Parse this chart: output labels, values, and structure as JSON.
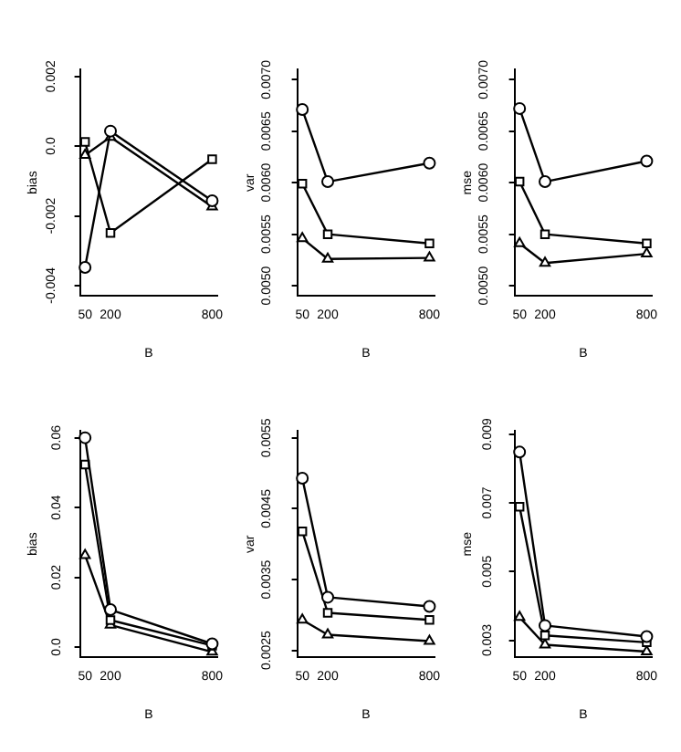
{
  "chart_data": [
    {
      "type": "line",
      "xlabel": "B",
      "ylabel": "bias",
      "x": [
        50,
        200,
        800
      ],
      "xlim": [
        20,
        830
      ],
      "xticks": [
        50,
        200,
        800
      ],
      "ylim": [
        -0.0043,
        0.0022
      ],
      "yticks": [
        {
          "value": -0.004,
          "label": "-0.004"
        },
        {
          "value": -0.002,
          "label": "-0.002"
        },
        {
          "value": 0,
          "label": "0.0"
        },
        {
          "value": 0.002,
          "label": "0.002"
        }
      ],
      "grid": false,
      "legend": false,
      "series": [
        {
          "color": "#000000",
          "marker": "circle",
          "values": [
            -0.00348,
            0.00043,
            -0.00157
          ]
        },
        {
          "color": "#000000",
          "marker": "square",
          "values": [
            0.00012,
            -0.00249,
            -0.00038
          ]
        },
        {
          "color": "#000000",
          "marker": "triangle",
          "values": [
            -0.00026,
            0.00026,
            -0.00174
          ]
        }
      ]
    },
    {
      "type": "line",
      "xlabel": "B",
      "ylabel": "var",
      "x": [
        50,
        200,
        800
      ],
      "xlim": [
        20,
        830
      ],
      "xticks": [
        50,
        200,
        800
      ],
      "ylim": [
        0.0049,
        0.0071
      ],
      "yticks": [
        {
          "value": 0.005,
          "label": "0.0050"
        },
        {
          "value": 0.0055,
          "label": "0.0055"
        },
        {
          "value": 0.006,
          "label": "0.0060"
        },
        {
          "value": 0.0065,
          "label": "0.0065"
        },
        {
          "value": 0.007,
          "label": "0.0070"
        }
      ],
      "grid": false,
      "legend": false,
      "series": [
        {
          "color": "#000000",
          "marker": "circle",
          "values": [
            0.00671,
            0.00601,
            0.00619
          ]
        },
        {
          "color": "#000000",
          "marker": "square",
          "values": [
            0.00599,
            0.0055,
            0.00541
          ]
        },
        {
          "color": "#000000",
          "marker": "triangle",
          "values": [
            0.00546,
            0.00526,
            0.00527
          ]
        }
      ]
    },
    {
      "type": "line",
      "xlabel": "B",
      "ylabel": "mse",
      "x": [
        50,
        200,
        800
      ],
      "xlim": [
        20,
        830
      ],
      "xticks": [
        50,
        200,
        800
      ],
      "ylim": [
        0.0049,
        0.0071
      ],
      "yticks": [
        {
          "value": 0.005,
          "label": "0.0050"
        },
        {
          "value": 0.0055,
          "label": "0.0055"
        },
        {
          "value": 0.006,
          "label": "0.0060"
        },
        {
          "value": 0.0065,
          "label": "0.0065"
        },
        {
          "value": 0.007,
          "label": "0.0070"
        }
      ],
      "grid": false,
      "legend": false,
      "series": [
        {
          "color": "#000000",
          "marker": "circle",
          "values": [
            0.00672,
            0.00601,
            0.00621
          ]
        },
        {
          "color": "#000000",
          "marker": "square",
          "values": [
            0.00601,
            0.0055,
            0.00541
          ]
        },
        {
          "color": "#000000",
          "marker": "triangle",
          "values": [
            0.00541,
            0.00522,
            0.00531
          ]
        }
      ]
    },
    {
      "type": "line",
      "xlabel": "B",
      "ylabel": "bias",
      "x": [
        50,
        200,
        800
      ],
      "xlim": [
        20,
        830
      ],
      "xticks": [
        50,
        200,
        800
      ],
      "ylim": [
        -0.003,
        0.062
      ],
      "yticks": [
        {
          "value": 0,
          "label": "0.0"
        },
        {
          "value": 0.02,
          "label": "0.02"
        },
        {
          "value": 0.04,
          "label": "0.04"
        },
        {
          "value": 0.06,
          "label": "0.06"
        }
      ],
      "grid": false,
      "legend": false,
      "series": [
        {
          "color": "#000000",
          "marker": "circle",
          "values": [
            0.06,
            0.0107,
            0.0009
          ]
        },
        {
          "color": "#000000",
          "marker": "square",
          "values": [
            0.0523,
            0.0077,
            0.0004
          ]
        },
        {
          "color": "#000000",
          "marker": "triangle",
          "values": [
            0.0263,
            0.0063,
            -0.0014
          ]
        }
      ]
    },
    {
      "type": "line",
      "xlabel": "B",
      "ylabel": "var",
      "x": [
        50,
        200,
        800
      ],
      "xlim": [
        20,
        830
      ],
      "xticks": [
        50,
        200,
        800
      ],
      "ylim": [
        0.0024,
        0.0056
      ],
      "yticks": [
        {
          "value": 0.0025,
          "label": "0.0025"
        },
        {
          "value": 0.0035,
          "label": "0.0035"
        },
        {
          "value": 0.0045,
          "label": "0.0045"
        },
        {
          "value": 0.0055,
          "label": "0.0055"
        }
      ],
      "grid": false,
      "legend": false,
      "series": [
        {
          "color": "#000000",
          "marker": "circle",
          "values": [
            0.00493,
            0.00325,
            0.00312
          ]
        },
        {
          "color": "#000000",
          "marker": "square",
          "values": [
            0.00418,
            0.00303,
            0.00293
          ]
        },
        {
          "color": "#000000",
          "marker": "triangle",
          "values": [
            0.00293,
            0.00272,
            0.00263
          ]
        }
      ]
    },
    {
      "type": "line",
      "xlabel": "B",
      "ylabel": "mse",
      "x": [
        50,
        200,
        800
      ],
      "xlim": [
        20,
        830
      ],
      "xticks": [
        50,
        200,
        800
      ],
      "ylim": [
        0.0025,
        0.0091
      ],
      "yticks": [
        {
          "value": 0.003,
          "label": "0.003"
        },
        {
          "value": 0.005,
          "label": "0.005"
        },
        {
          "value": 0.007,
          "label": "0.007"
        },
        {
          "value": 0.009,
          "label": "0.009"
        }
      ],
      "grid": false,
      "legend": false,
      "series": [
        {
          "color": "#000000",
          "marker": "circle",
          "values": [
            0.00848,
            0.00343,
            0.00311
          ]
        },
        {
          "color": "#000000",
          "marker": "square",
          "values": [
            0.00689,
            0.00314,
            0.00294
          ]
        },
        {
          "color": "#000000",
          "marker": "triangle",
          "values": [
            0.00367,
            0.00287,
            0.00267
          ]
        }
      ]
    }
  ]
}
